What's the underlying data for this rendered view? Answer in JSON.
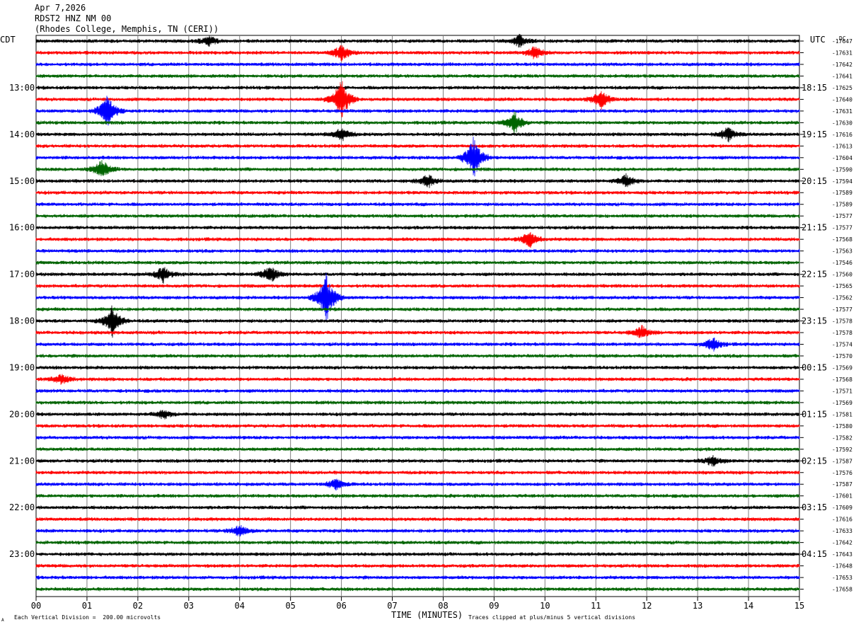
{
  "header": {
    "date": "Apr 7,2026",
    "station": "RDST2 HNZ NM 00",
    "site": "(Rhodes College, Memphis, TN (CERI))"
  },
  "axes": {
    "left_label": "CDT",
    "right_label": "UTC",
    "dc_label": "DC",
    "x_title": "TIME (MINUTES)"
  },
  "footer": {
    "scale_note": "Each Vertical Division =  200.00 microvolts",
    "clip_note": "Traces clipped at plus/minus 5 vertical divisions",
    "corner_mark": "A"
  },
  "colors": {
    "trace_cycle": [
      "#000000",
      "#ff0000",
      "#0000ff",
      "#006400"
    ],
    "grid": "#808080"
  },
  "chart_data": {
    "type": "line",
    "title": "",
    "xlabel": "TIME (MINUTES)",
    "xlim": [
      0,
      15
    ],
    "x_ticks": [
      "00",
      "01",
      "02",
      "03",
      "04",
      "05",
      "06",
      "07",
      "08",
      "09",
      "10",
      "11",
      "12",
      "13",
      "14",
      "15"
    ],
    "left_hour_labels": [
      "13:00",
      "14:00",
      "15:00",
      "16:00",
      "17:00",
      "18:00",
      "19:00",
      "20:00",
      "21:00",
      "22:00",
      "23:00"
    ],
    "right_hour_labels": [
      "18:15",
      "19:15",
      "20:15",
      "21:15",
      "22:15",
      "23:15",
      "00:15",
      "01:15",
      "02:15",
      "03:15",
      "04:15"
    ],
    "dc_offsets": [
      -17647,
      -17631,
      -17642,
      -17641,
      -17625,
      -17640,
      -17631,
      -17630,
      -17616,
      -17613,
      -17604,
      -17590,
      -17594,
      -17589,
      -17589,
      -17577,
      -17577,
      -17568,
      -17563,
      -17546,
      -17560,
      -17565,
      -17562,
      -17577,
      -17578,
      -17578,
      -17574,
      -17570,
      -17569,
      -17568,
      -17571,
      -17569,
      -17581,
      -17580,
      -17582,
      -17592,
      -17587,
      -17576,
      -17587,
      -17601,
      -17609,
      -17616,
      -17633,
      -17642,
      -17643,
      -17648,
      -17653,
      -17658
    ],
    "traces_per_hour": 4,
    "first_trace_hour_offset": 3,
    "events": [
      {
        "trace": 0,
        "minute": 3.4,
        "amp": 8
      },
      {
        "trace": 0,
        "minute": 9.5,
        "amp": 9
      },
      {
        "trace": 1,
        "minute": 6.0,
        "amp": 12
      },
      {
        "trace": 1,
        "minute": 9.8,
        "amp": 9
      },
      {
        "trace": 5,
        "minute": 6.0,
        "amp": 30
      },
      {
        "trace": 5,
        "minute": 11.1,
        "amp": 14
      },
      {
        "trace": 6,
        "minute": 1.4,
        "amp": 24
      },
      {
        "trace": 7,
        "minute": 9.4,
        "amp": 16
      },
      {
        "trace": 8,
        "minute": 6.0,
        "amp": 10
      },
      {
        "trace": 8,
        "minute": 13.6,
        "amp": 10
      },
      {
        "trace": 10,
        "minute": 8.6,
        "amp": 30
      },
      {
        "trace": 11,
        "minute": 1.3,
        "amp": 14
      },
      {
        "trace": 12,
        "minute": 7.7,
        "amp": 10
      },
      {
        "trace": 12,
        "minute": 11.6,
        "amp": 10
      },
      {
        "trace": 17,
        "minute": 9.7,
        "amp": 12
      },
      {
        "trace": 20,
        "minute": 2.5,
        "amp": 11
      },
      {
        "trace": 20,
        "minute": 4.6,
        "amp": 13
      },
      {
        "trace": 22,
        "minute": 5.7,
        "amp": 36
      },
      {
        "trace": 24,
        "minute": 1.5,
        "amp": 22
      },
      {
        "trace": 25,
        "minute": 11.9,
        "amp": 9
      },
      {
        "trace": 26,
        "minute": 13.3,
        "amp": 10
      },
      {
        "trace": 29,
        "minute": 0.5,
        "amp": 7
      },
      {
        "trace": 32,
        "minute": 2.5,
        "amp": 7
      },
      {
        "trace": 36,
        "minute": 13.3,
        "amp": 8
      },
      {
        "trace": 38,
        "minute": 5.9,
        "amp": 8
      },
      {
        "trace": 42,
        "minute": 4.0,
        "amp": 9
      }
    ],
    "clipped_at_divisions": 5,
    "microvolts_per_division": 200
  }
}
